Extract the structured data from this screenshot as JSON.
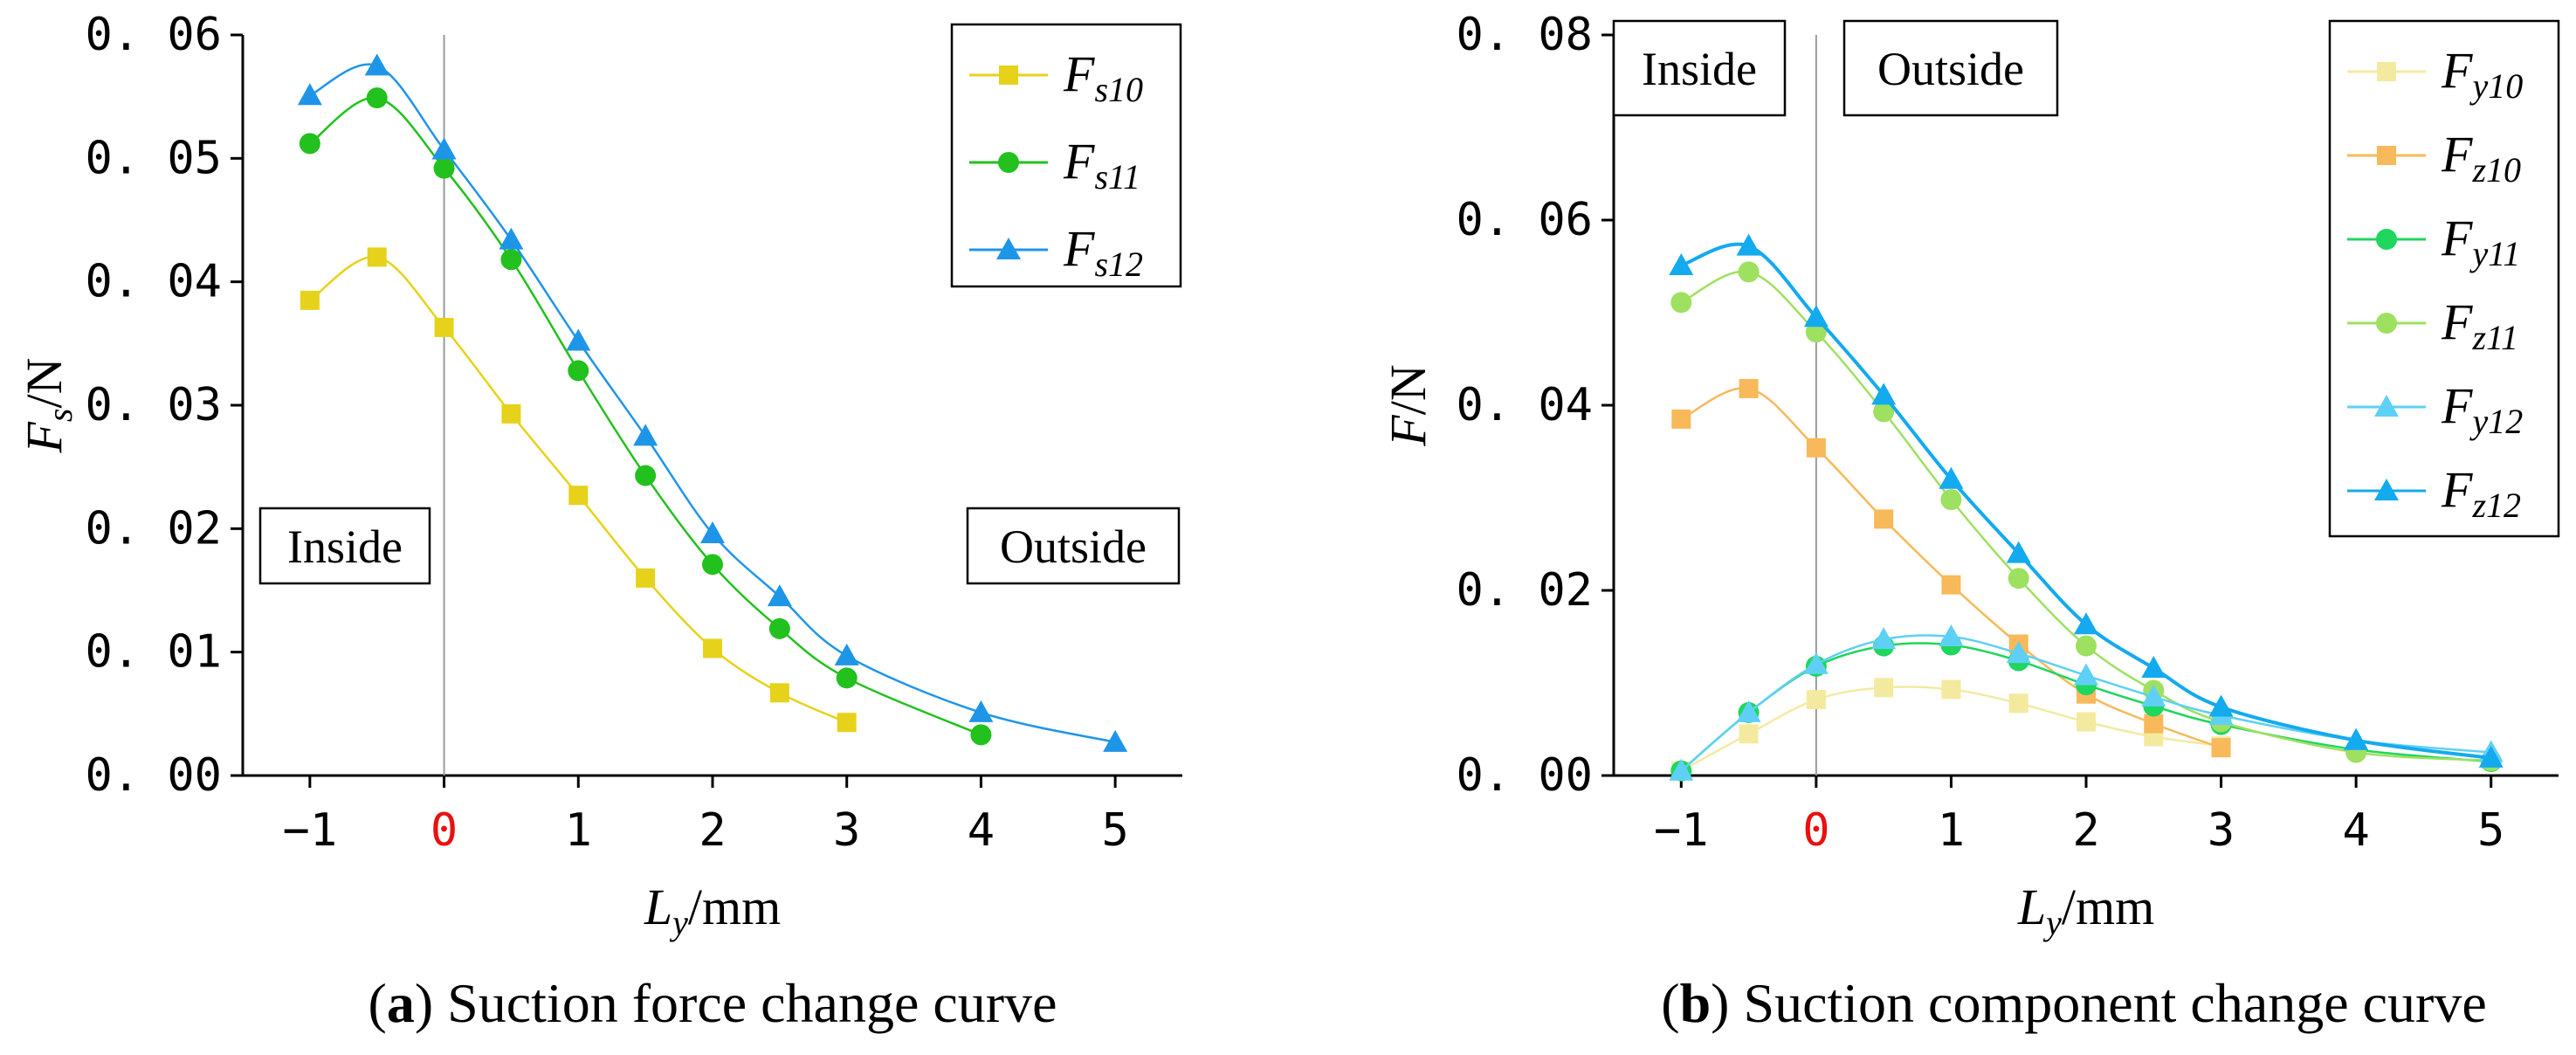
{
  "chart_data": [
    {
      "type": "line",
      "panel": "a",
      "caption_label": "a",
      "caption_text": "Suction force change curve",
      "xlabel_main": "L",
      "xlabel_sub": "y",
      "xlabel_unit": "/mm",
      "ylabel_main": "F",
      "ylabel_sub": "s",
      "ylabel_unit": "/N",
      "xlim": [
        -1.5,
        5.5
      ],
      "ylim": [
        0,
        0.06
      ],
      "xticks": [
        "−1",
        "0",
        "1",
        "2",
        "3",
        "4",
        "5"
      ],
      "xtick_values": [
        -1,
        0,
        1,
        2,
        3,
        4,
        5
      ],
      "yticks": [
        "0. 00",
        "0. 01",
        "0. 02",
        "0. 03",
        "0. 04",
        "0. 05",
        "0. 06"
      ],
      "ytick_values": [
        0,
        0.01,
        0.02,
        0.03,
        0.04,
        0.05,
        0.06
      ],
      "region_left": "Inside",
      "region_right": "Outside",
      "legend_position": "top-right",
      "series": [
        {
          "name": "F",
          "sub": "s10",
          "color": "#e6d21a",
          "marker": "square",
          "x": [
            -1,
            -0.5,
            0,
            0.5,
            1,
            1.5,
            2,
            2.5,
            3
          ],
          "values": [
            0.0385,
            0.042,
            0.0363,
            0.0293,
            0.0227,
            0.016,
            0.0103,
            0.0067,
            0.0043
          ]
        },
        {
          "name": "F",
          "sub": "s11",
          "color": "#22c11d",
          "marker": "circle",
          "x": [
            -1,
            -0.5,
            0,
            0.5,
            1,
            1.5,
            2,
            2.5,
            3,
            4
          ],
          "values": [
            0.0512,
            0.0549,
            0.0492,
            0.0418,
            0.0328,
            0.0243,
            0.0171,
            0.0119,
            0.0079,
            0.0033
          ]
        },
        {
          "name": "F",
          "sub": "s12",
          "color": "#1f95e8",
          "marker": "triangle",
          "x": [
            -1,
            -0.5,
            0,
            0.5,
            1,
            1.5,
            2,
            2.5,
            3,
            4,
            5
          ],
          "values": [
            0.0551,
            0.0575,
            0.0507,
            0.0434,
            0.0352,
            0.0275,
            0.0196,
            0.0145,
            0.0097,
            0.0051,
            0.0027
          ]
        }
      ]
    },
    {
      "type": "line",
      "panel": "b",
      "caption_label": "b",
      "caption_text": "Suction component change curve",
      "xlabel_main": "L",
      "xlabel_sub": "y",
      "xlabel_unit": "/mm",
      "ylabel_main": "F",
      "ylabel_sub": "",
      "ylabel_unit": "/N",
      "xlim": [
        -1.5,
        5.5
      ],
      "ylim": [
        0,
        0.08
      ],
      "xticks": [
        "−1",
        "0",
        "1",
        "2",
        "3",
        "4",
        "5"
      ],
      "xtick_values": [
        -1,
        0,
        1,
        2,
        3,
        4,
        5
      ],
      "yticks": [
        "0. 00",
        "0. 02",
        "0. 04",
        "0. 06",
        "0. 08"
      ],
      "ytick_values": [
        0,
        0.02,
        0.04,
        0.06,
        0.08
      ],
      "region_left": "Inside",
      "region_right": "Outside",
      "legend_position": "top-right",
      "series": [
        {
          "name": "F",
          "sub": "y10",
          "color": "#f3eaa0",
          "marker": "square",
          "x": [
            -1,
            -0.5,
            0,
            0.5,
            1,
            1.5,
            2,
            2.5,
            3
          ],
          "values": [
            0.0005,
            0.0045,
            0.0082,
            0.0095,
            0.0093,
            0.0078,
            0.0058,
            0.0042,
            0.0032
          ]
        },
        {
          "name": "F",
          "sub": "z10",
          "color": "#f7b95a",
          "marker": "square",
          "x": [
            -1,
            -0.5,
            0,
            0.5,
            1,
            1.5,
            2,
            2.5,
            3
          ],
          "values": [
            0.0385,
            0.0418,
            0.0354,
            0.0277,
            0.0206,
            0.0142,
            0.0088,
            0.0056,
            0.003
          ]
        },
        {
          "name": "F",
          "sub": "y11",
          "color": "#1fd65e",
          "marker": "circle",
          "x": [
            -1,
            -0.5,
            0,
            0.5,
            1,
            1.5,
            2,
            2.5,
            3,
            4,
            5
          ],
          "values": [
            0.0005,
            0.0068,
            0.0118,
            0.014,
            0.0141,
            0.0124,
            0.0098,
            0.0075,
            0.0055,
            0.0028,
            0.0015
          ]
        },
        {
          "name": "F",
          "sub": "z11",
          "color": "#9ee060",
          "marker": "circle",
          "x": [
            -1,
            -0.5,
            0,
            0.5,
            1,
            1.5,
            2,
            2.5,
            3,
            4,
            5
          ],
          "values": [
            0.0511,
            0.0544,
            0.0479,
            0.0393,
            0.0298,
            0.0213,
            0.014,
            0.0092,
            0.0058,
            0.0025,
            0.0016
          ]
        },
        {
          "name": "F",
          "sub": "y12",
          "color": "#5fd0f5",
          "marker": "triangle",
          "x": [
            -1,
            -0.5,
            0,
            0.5,
            1,
            1.5,
            2,
            2.5,
            3,
            4,
            5
          ],
          "values": [
            0.0005,
            0.0068,
            0.012,
            0.0147,
            0.015,
            0.0132,
            0.0108,
            0.0085,
            0.0065,
            0.0038,
            0.0025
          ]
        },
        {
          "name": "F",
          "sub": "z12",
          "color": "#13aaee",
          "marker": "triangle",
          "x": [
            -1,
            -0.5,
            0,
            0.5,
            1,
            1.5,
            2,
            2.5,
            3,
            4,
            5
          ],
          "values": [
            0.0551,
            0.0572,
            0.0495,
            0.0411,
            0.032,
            0.024,
            0.0163,
            0.0116,
            0.0074,
            0.0038,
            0.0019
          ]
        }
      ]
    }
  ]
}
